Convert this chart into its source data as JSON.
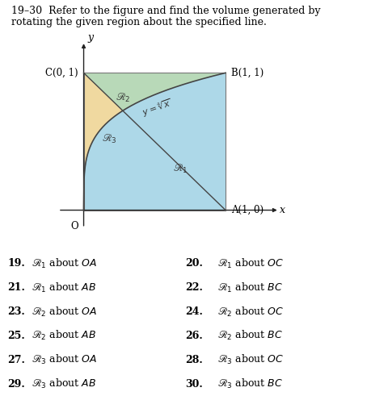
{
  "title_line1": "19–30  Refer to the figure and find the volume generated by",
  "title_line2": "rotating the given region about the specified line.",
  "title_fontsize": 9.0,
  "fig_width": 4.59,
  "fig_height": 4.91,
  "color_R1": "#add8e8",
  "color_R2": "#b8d9b8",
  "color_R3": "#f0d9a0",
  "color_curve": "#444444",
  "color_axes": "#222222",
  "color_border": "#777777",
  "problems": [
    {
      "R": "1",
      "about": "OA",
      "left": true,
      "num": "19."
    },
    {
      "R": "1",
      "about": "OC",
      "left": false,
      "num": "20."
    },
    {
      "R": "1",
      "about": "AB",
      "left": true,
      "num": "21."
    },
    {
      "R": "1",
      "about": "BC",
      "left": false,
      "num": "22."
    },
    {
      "R": "2",
      "about": "OA",
      "left": true,
      "num": "23."
    },
    {
      "R": "2",
      "about": "OC",
      "left": false,
      "num": "24."
    },
    {
      "R": "2",
      "about": "AB",
      "left": true,
      "num": "25."
    },
    {
      "R": "2",
      "about": "BC",
      "left": false,
      "num": "26."
    },
    {
      "R": "3",
      "about": "OA",
      "left": true,
      "num": "27."
    },
    {
      "R": "3",
      "about": "OC",
      "left": false,
      "num": "28."
    },
    {
      "R": "3",
      "about": "AB",
      "left": true,
      "num": "29."
    },
    {
      "R": "3",
      "about": "BC",
      "left": false,
      "num": "30."
    }
  ],
  "diagram": {
    "xlim": [
      -0.25,
      1.45
    ],
    "ylim": [
      -0.2,
      1.3
    ]
  }
}
